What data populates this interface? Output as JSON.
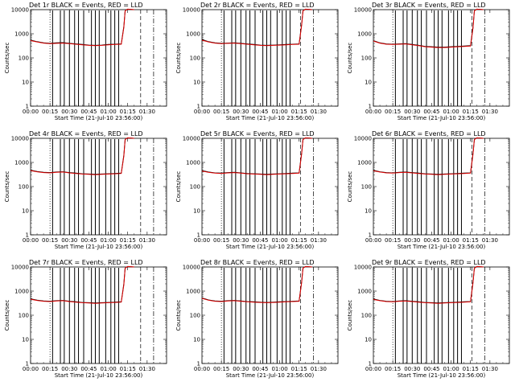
{
  "figure": {
    "colors": {
      "events": "#000000",
      "lld": "#e00000",
      "frame": "#000000",
      "background": "#ffffff"
    }
  },
  "chart_data": [
    {
      "type": "line",
      "title": "Det 1r  BLACK = Events, RED = LLD",
      "xlabel": "Start Time (21-Jul-10 23:56:00)",
      "ylabel": "Counts/sec",
      "y_scale": "log",
      "ylim": [
        1,
        10000
      ],
      "x_tick_labels": [
        "00:00",
        "00:15",
        "00:30",
        "00:45",
        "01:00",
        "01:15",
        "01:30"
      ],
      "y_tick_labels": [
        "1",
        "10",
        "100",
        "1000",
        "10000"
      ],
      "x_minutes": [
        0,
        5,
        10,
        15,
        20,
        25,
        30,
        35,
        40,
        45,
        50,
        55,
        60,
        65,
        70,
        72,
        73,
        75,
        80
      ],
      "series": [
        {
          "values": [
            550,
            470,
            420,
            400,
            420,
            430,
            400,
            380,
            360,
            340,
            330,
            340,
            360,
            370,
            380,
            2000,
            9000,
            10500,
            10000
          ]
        },
        {
          "values": [
            520,
            460,
            410,
            390,
            400,
            410,
            390,
            370,
            350,
            330,
            320,
            330,
            350,
            360,
            370,
            1800,
            9000,
            10500,
            10000
          ]
        }
      ],
      "event_dips_minutes": [
        17,
        23,
        26,
        30,
        34,
        37,
        41,
        47,
        50,
        53,
        58,
        62,
        65,
        68
      ],
      "dotted_vline_minutes": [
        15
      ],
      "dashed_vline_minutes": [
        85
      ],
      "dashdot_vline_minutes": [
        95
      ]
    },
    {
      "type": "line",
      "title": "Det 2r  BLACK = Events, RED = LLD",
      "xlabel": "Start Time (21-Jul-10 23:56:00)",
      "ylabel": "Counts/sec",
      "y_scale": "log",
      "ylim": [
        1,
        10000
      ],
      "x_tick_labels": [
        "00:00",
        "00:15",
        "00:30",
        "00:45",
        "01:00",
        "01:15",
        "01:30"
      ],
      "y_tick_labels": [
        "1",
        "10",
        "100",
        "1000",
        "10000"
      ],
      "x_minutes": [
        0,
        5,
        10,
        15,
        20,
        25,
        30,
        35,
        40,
        45,
        50,
        55,
        60,
        65,
        70,
        75,
        77,
        78,
        80,
        85
      ],
      "series": [
        {
          "values": [
            580,
            470,
            420,
            400,
            410,
            420,
            400,
            380,
            360,
            340,
            330,
            340,
            350,
            360,
            370,
            380,
            2500,
            9000,
            10500,
            10000
          ]
        },
        {
          "values": [
            540,
            460,
            410,
            390,
            400,
            410,
            390,
            370,
            350,
            330,
            320,
            330,
            340,
            350,
            360,
            370,
            2300,
            9000,
            10500,
            10000
          ]
        }
      ],
      "event_dips_minutes": [
        17,
        23,
        26,
        30,
        34,
        37,
        41,
        47,
        50,
        53,
        58,
        62,
        65,
        68
      ],
      "dotted_vline_minutes": [
        15
      ],
      "dashed_vline_minutes": [
        76
      ],
      "dashdot_vline_minutes": [
        86
      ]
    },
    {
      "type": "line",
      "title": "Det 3r  BLACK = Events, RED = LLD",
      "xlabel": "Start Time (21-Jul-10 23:56:00)",
      "ylabel": "Counts/sec",
      "y_scale": "log",
      "ylim": [
        1,
        10000
      ],
      "x_tick_labels": [
        "00:00",
        "00:15",
        "00:30",
        "00:45",
        "01:00",
        "01:15",
        "01:30"
      ],
      "y_tick_labels": [
        "1",
        "10",
        "100",
        "1000",
        "10000"
      ],
      "x_minutes": [
        0,
        5,
        10,
        15,
        20,
        25,
        30,
        35,
        40,
        45,
        50,
        55,
        60,
        65,
        70,
        75,
        77,
        78,
        80,
        85
      ],
      "series": [
        {
          "values": [
            520,
            420,
            380,
            370,
            380,
            390,
            360,
            330,
            300,
            290,
            280,
            280,
            290,
            300,
            310,
            320,
            2000,
            9000,
            10500,
            10000
          ]
        },
        {
          "values": [
            500,
            410,
            370,
            360,
            370,
            380,
            350,
            320,
            290,
            280,
            270,
            270,
            280,
            290,
            300,
            310,
            1800,
            9000,
            10500,
            10000
          ]
        }
      ],
      "event_dips_minutes": [
        17,
        23,
        26,
        30,
        34,
        37,
        41,
        47,
        50,
        53,
        58,
        62,
        65,
        68
      ],
      "dotted_vline_minutes": [
        15
      ],
      "dashed_vline_minutes": [
        76
      ],
      "dashdot_vline_minutes": [
        86
      ]
    },
    {
      "type": "line",
      "title": "Det 4r  BLACK = Events, RED = LLD",
      "xlabel": "Start Time (21-Jul-10 23:56:00)",
      "ylabel": "Counts/sec",
      "y_scale": "log",
      "ylim": [
        1,
        10000
      ],
      "x_tick_labels": [
        "00:00",
        "00:15",
        "00:30",
        "00:45",
        "01:00",
        "01:15",
        "01:30"
      ],
      "y_tick_labels": [
        "1",
        "10",
        "100",
        "1000",
        "10000"
      ],
      "x_minutes": [
        0,
        5,
        10,
        15,
        20,
        25,
        30,
        35,
        40,
        45,
        50,
        55,
        60,
        65,
        70,
        72,
        73,
        75,
        80
      ],
      "series": [
        {
          "values": [
            480,
            420,
            390,
            380,
            400,
            410,
            380,
            360,
            340,
            330,
            320,
            330,
            340,
            350,
            360,
            2000,
            9000,
            10500,
            10000
          ]
        },
        {
          "values": [
            460,
            410,
            380,
            370,
            390,
            400,
            370,
            350,
            330,
            320,
            310,
            320,
            330,
            340,
            350,
            1800,
            9000,
            10500,
            10000
          ]
        }
      ],
      "event_dips_minutes": [
        17,
        23,
        26,
        30,
        34,
        37,
        41,
        47,
        50,
        53,
        58,
        62,
        65,
        68
      ],
      "dotted_vline_minutes": [
        15
      ],
      "dashed_vline_minutes": [
        85
      ],
      "dashdot_vline_minutes": [
        95
      ]
    },
    {
      "type": "line",
      "title": "Det 5r  BLACK = Events, RED = LLD",
      "xlabel": "Start Time (21-Jul-10 23:56:00)",
      "ylabel": "Counts/sec",
      "y_scale": "log",
      "ylim": [
        1,
        10000
      ],
      "x_tick_labels": [
        "00:00",
        "00:15",
        "00:30",
        "00:45",
        "01:00",
        "01:15",
        "01:30"
      ],
      "y_tick_labels": [
        "1",
        "10",
        "100",
        "1000",
        "10000"
      ],
      "x_minutes": [
        0,
        5,
        10,
        15,
        20,
        25,
        30,
        35,
        40,
        45,
        50,
        55,
        60,
        65,
        70,
        75,
        77,
        78,
        80,
        85
      ],
      "series": [
        {
          "values": [
            460,
            400,
            370,
            360,
            380,
            390,
            370,
            350,
            340,
            330,
            320,
            330,
            340,
            350,
            360,
            370,
            2500,
            9000,
            10500,
            10000
          ]
        },
        {
          "values": [
            440,
            390,
            360,
            350,
            370,
            380,
            360,
            340,
            330,
            320,
            310,
            320,
            330,
            340,
            350,
            360,
            2300,
            9000,
            10500,
            10000
          ]
        }
      ],
      "event_dips_minutes": [
        17,
        23,
        26,
        30,
        34,
        37,
        41,
        47,
        50,
        53,
        58,
        62,
        65,
        68
      ],
      "dotted_vline_minutes": [
        15
      ],
      "dashed_vline_minutes": [
        76
      ],
      "dashdot_vline_minutes": [
        86
      ]
    },
    {
      "type": "line",
      "title": "Det 6r  BLACK = Events, RED = LLD",
      "xlabel": "Start Time (21-Jul-10 23:56:00)",
      "ylabel": "Counts/sec",
      "y_scale": "log",
      "ylim": [
        1,
        10000
      ],
      "x_tick_labels": [
        "00:00",
        "00:15",
        "00:30",
        "00:45",
        "01:00",
        "01:15",
        "01:30"
      ],
      "y_tick_labels": [
        "1",
        "10",
        "100",
        "1000",
        "10000"
      ],
      "x_minutes": [
        0,
        5,
        10,
        15,
        20,
        25,
        30,
        35,
        40,
        45,
        50,
        55,
        60,
        65,
        70,
        75,
        77,
        78,
        80,
        85
      ],
      "series": [
        {
          "values": [
            470,
            410,
            380,
            370,
            390,
            400,
            380,
            360,
            340,
            330,
            320,
            330,
            340,
            350,
            360,
            370,
            2500,
            9000,
            10500,
            10000
          ]
        },
        {
          "values": [
            450,
            400,
            370,
            360,
            380,
            390,
            370,
            350,
            330,
            320,
            310,
            320,
            330,
            340,
            350,
            360,
            2300,
            9000,
            10500,
            10000
          ]
        }
      ],
      "event_dips_minutes": [
        17,
        23,
        26,
        30,
        34,
        37,
        41,
        47,
        50,
        53,
        58,
        62,
        65,
        68
      ],
      "dotted_vline_minutes": [
        15
      ],
      "dashed_vline_minutes": [
        76
      ],
      "dashdot_vline_minutes": [
        86
      ]
    },
    {
      "type": "line",
      "title": "Det 7r  BLACK = Events, RED = LLD",
      "xlabel": "Start Time (21-Jul-10 23:56:00)",
      "ylabel": "Counts/sec",
      "y_scale": "log",
      "ylim": [
        1,
        10000
      ],
      "x_tick_labels": [
        "00:00",
        "00:15",
        "00:30",
        "00:45",
        "01:00",
        "01:15",
        "01:30"
      ],
      "y_tick_labels": [
        "1",
        "10",
        "100",
        "1000",
        "10000"
      ],
      "x_minutes": [
        0,
        5,
        10,
        15,
        20,
        25,
        30,
        35,
        40,
        45,
        50,
        55,
        60,
        65,
        70,
        72,
        73,
        75,
        80
      ],
      "series": [
        {
          "values": [
            480,
            420,
            390,
            380,
            400,
            410,
            380,
            360,
            340,
            330,
            320,
            330,
            340,
            350,
            360,
            2000,
            9000,
            10500,
            10000
          ]
        },
        {
          "values": [
            460,
            410,
            380,
            370,
            390,
            400,
            370,
            350,
            330,
            320,
            310,
            320,
            330,
            340,
            350,
            1800,
            9000,
            10500,
            10000
          ]
        }
      ],
      "event_dips_minutes": [
        17,
        23,
        26,
        30,
        34,
        37,
        41,
        47,
        50,
        53,
        58,
        62,
        65,
        68
      ],
      "dotted_vline_minutes": [
        15
      ],
      "dashed_vline_minutes": [
        85
      ],
      "dashdot_vline_minutes": [
        95
      ]
    },
    {
      "type": "line",
      "title": "Det 8r  BLACK = Events, RED = LLD",
      "xlabel": "Start Time (21-Jul-10 23:56:00)",
      "ylabel": "Counts/sec",
      "y_scale": "log",
      "ylim": [
        1,
        10000
      ],
      "x_tick_labels": [
        "00:00",
        "00:15",
        "00:30",
        "00:45",
        "01:00",
        "01:15",
        "01:30"
      ],
      "y_tick_labels": [
        "1",
        "10",
        "100",
        "1000",
        "10000"
      ],
      "x_minutes": [
        0,
        5,
        10,
        15,
        20,
        25,
        30,
        35,
        40,
        45,
        50,
        55,
        60,
        65,
        70,
        75,
        77,
        78,
        80,
        85
      ],
      "series": [
        {
          "values": [
            520,
            430,
            390,
            380,
            400,
            410,
            390,
            370,
            360,
            350,
            340,
            350,
            360,
            370,
            380,
            390,
            2500,
            9000,
            10500,
            10000
          ]
        },
        {
          "values": [
            500,
            420,
            380,
            370,
            390,
            400,
            380,
            360,
            350,
            340,
            330,
            340,
            350,
            360,
            370,
            380,
            2300,
            9000,
            10500,
            10000
          ]
        }
      ],
      "event_dips_minutes": [
        17,
        23,
        26,
        30,
        34,
        37,
        41,
        47,
        50,
        53,
        58,
        62,
        65,
        68
      ],
      "dotted_vline_minutes": [
        15
      ],
      "dashed_vline_minutes": [
        76
      ],
      "dashdot_vline_minutes": [
        86
      ]
    },
    {
      "type": "line",
      "title": "Det 9r  BLACK = Events, RED = LLD",
      "xlabel": "Start Time (21-Jul-10 23:56:00)",
      "ylabel": "Counts/sec",
      "y_scale": "log",
      "ylim": [
        1,
        10000
      ],
      "x_tick_labels": [
        "00:00",
        "00:15",
        "00:30",
        "00:45",
        "01:00",
        "01:15",
        "01:30"
      ],
      "y_tick_labels": [
        "1",
        "10",
        "100",
        "1000",
        "10000"
      ],
      "x_minutes": [
        0,
        5,
        10,
        15,
        20,
        25,
        30,
        35,
        40,
        45,
        50,
        55,
        60,
        65,
        70,
        75,
        77,
        78,
        80,
        85
      ],
      "series": [
        {
          "values": [
            470,
            410,
            380,
            370,
            390,
            400,
            380,
            360,
            340,
            330,
            320,
            330,
            340,
            350,
            360,
            370,
            2500,
            9000,
            10500,
            10000
          ]
        },
        {
          "values": [
            450,
            400,
            370,
            360,
            380,
            390,
            370,
            350,
            330,
            320,
            310,
            320,
            330,
            340,
            350,
            360,
            2300,
            9000,
            10500,
            10000
          ]
        }
      ],
      "event_dips_minutes": [
        17,
        23,
        26,
        30,
        34,
        37,
        41,
        47,
        50,
        53,
        58,
        62,
        65,
        68
      ],
      "dotted_vline_minutes": [
        15
      ],
      "dashed_vline_minutes": [
        76
      ],
      "dashdot_vline_minutes": [
        86
      ]
    }
  ]
}
